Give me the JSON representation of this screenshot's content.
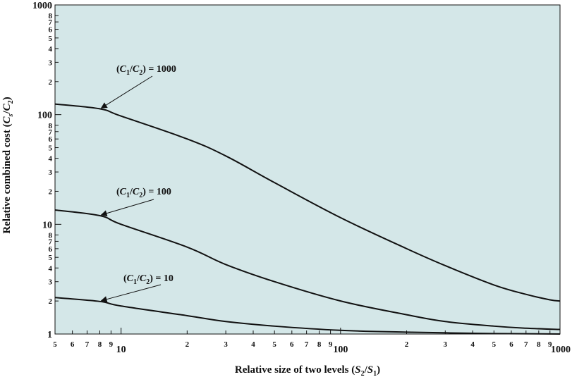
{
  "chart_data": {
    "type": "line",
    "x_scale": "log",
    "y_scale": "log",
    "xlim": [
      5,
      1000
    ],
    "ylim": [
      1,
      1000
    ],
    "grid": false,
    "background_color": "#d4e7e8",
    "line_color": "#111111",
    "xlabel": {
      "prefix": "Relative size of two levels (",
      "s2": "S",
      "s2_sub": "2",
      "slash": "/",
      "s1": "S",
      "s1_sub": "1",
      "suffix": ")"
    },
    "ylabel": {
      "prefix": "Relative combined cost (",
      "cs": "C",
      "cs_sub": "s",
      "slash": "/",
      "c2": "C",
      "c2_sub": "2",
      "suffix": ")"
    },
    "x_major_ticks": [
      {
        "value": 10,
        "label": "10"
      },
      {
        "value": 100,
        "label": "100"
      },
      {
        "value": 1000,
        "label": "1000"
      }
    ],
    "x_minor_ticks": [
      {
        "value": 5,
        "label": "5"
      },
      {
        "value": 6,
        "label": "6"
      },
      {
        "value": 7,
        "label": "7"
      },
      {
        "value": 8,
        "label": "8"
      },
      {
        "value": 9,
        "label": "9"
      },
      {
        "value": 20,
        "label": "2"
      },
      {
        "value": 30,
        "label": "3"
      },
      {
        "value": 40,
        "label": "4"
      },
      {
        "value": 50,
        "label": "5"
      },
      {
        "value": 60,
        "label": "6"
      },
      {
        "value": 70,
        "label": "7"
      },
      {
        "value": 80,
        "label": "8"
      },
      {
        "value": 90,
        "label": "9"
      },
      {
        "value": 200,
        "label": "2"
      },
      {
        "value": 300,
        "label": "3"
      },
      {
        "value": 400,
        "label": "4"
      },
      {
        "value": 500,
        "label": "5"
      },
      {
        "value": 600,
        "label": "6"
      },
      {
        "value": 700,
        "label": "7"
      },
      {
        "value": 800,
        "label": "8"
      },
      {
        "value": 900,
        "label": "9"
      }
    ],
    "y_major_ticks": [
      {
        "value": 1,
        "label": "1"
      },
      {
        "value": 10,
        "label": "10"
      },
      {
        "value": 100,
        "label": "100"
      },
      {
        "value": 1000,
        "label": "1000"
      }
    ],
    "y_minor_ticks": [
      {
        "value": 2,
        "label": "2"
      },
      {
        "value": 3,
        "label": "3"
      },
      {
        "value": 4,
        "label": "4"
      },
      {
        "value": 5,
        "label": "5"
      },
      {
        "value": 6,
        "label": "6"
      },
      {
        "value": 7,
        "label": "7"
      },
      {
        "value": 8,
        "label": "8"
      },
      {
        "value": 20,
        "label": "2"
      },
      {
        "value": 30,
        "label": "3"
      },
      {
        "value": 40,
        "label": "4"
      },
      {
        "value": 50,
        "label": "5"
      },
      {
        "value": 60,
        "label": "6"
      },
      {
        "value": 70,
        "label": "7"
      },
      {
        "value": 80,
        "label": "8"
      },
      {
        "value": 200,
        "label": "2"
      },
      {
        "value": 300,
        "label": "3"
      },
      {
        "value": 400,
        "label": "4"
      },
      {
        "value": 500,
        "label": "5"
      },
      {
        "value": 600,
        "label": "6"
      },
      {
        "value": 700,
        "label": "7"
      },
      {
        "value": 800,
        "label": "8"
      }
    ],
    "series": [
      {
        "label": {
          "open": "(",
          "c1": "C",
          "c1_sub": "1",
          "slash": "/",
          "c2": "C",
          "c2_sub": "2",
          "close": ")",
          "equals": " = ",
          "value": "1000"
        },
        "points": [
          [
            5,
            125
          ],
          [
            8,
            113
          ],
          [
            10,
            97
          ],
          [
            20,
            60
          ],
          [
            30,
            42
          ],
          [
            50,
            24
          ],
          [
            100,
            11.5
          ],
          [
            200,
            6
          ],
          [
            300,
            4.2
          ],
          [
            500,
            2.8
          ],
          [
            700,
            2.3
          ],
          [
            900,
            2.05
          ],
          [
            1000,
            2.0
          ]
        ],
        "arrow_target": [
          8,
          113
        ]
      },
      {
        "label": {
          "open": "(",
          "c1": "C",
          "c1_sub": "1",
          "slash": "/",
          "c2": "C",
          "c2_sub": "2",
          "close": ")",
          "equals": " = ",
          "value": "100"
        },
        "points": [
          [
            5,
            13.5
          ],
          [
            8,
            12
          ],
          [
            10,
            10
          ],
          [
            20,
            6.2
          ],
          [
            30,
            4.3
          ],
          [
            50,
            3.0
          ],
          [
            100,
            2.0
          ],
          [
            200,
            1.5
          ],
          [
            300,
            1.3
          ],
          [
            500,
            1.18
          ],
          [
            700,
            1.13
          ],
          [
            1000,
            1.1
          ]
        ],
        "arrow_target": [
          8,
          12
        ]
      },
      {
        "label": {
          "open": "(",
          "c1": "C",
          "c1_sub": "1",
          "slash": "/",
          "c2": "C",
          "c2_sub": "2",
          "close": ")",
          "equals": " = ",
          "value": "10"
        },
        "points": [
          [
            5,
            2.15
          ],
          [
            8,
            1.98
          ],
          [
            10,
            1.8
          ],
          [
            20,
            1.47
          ],
          [
            30,
            1.3
          ],
          [
            50,
            1.18
          ],
          [
            100,
            1.08
          ],
          [
            200,
            1.04
          ],
          [
            500,
            1.01
          ],
          [
            1000,
            1.0
          ]
        ],
        "arrow_target": [
          8,
          1.98
        ]
      }
    ]
  }
}
